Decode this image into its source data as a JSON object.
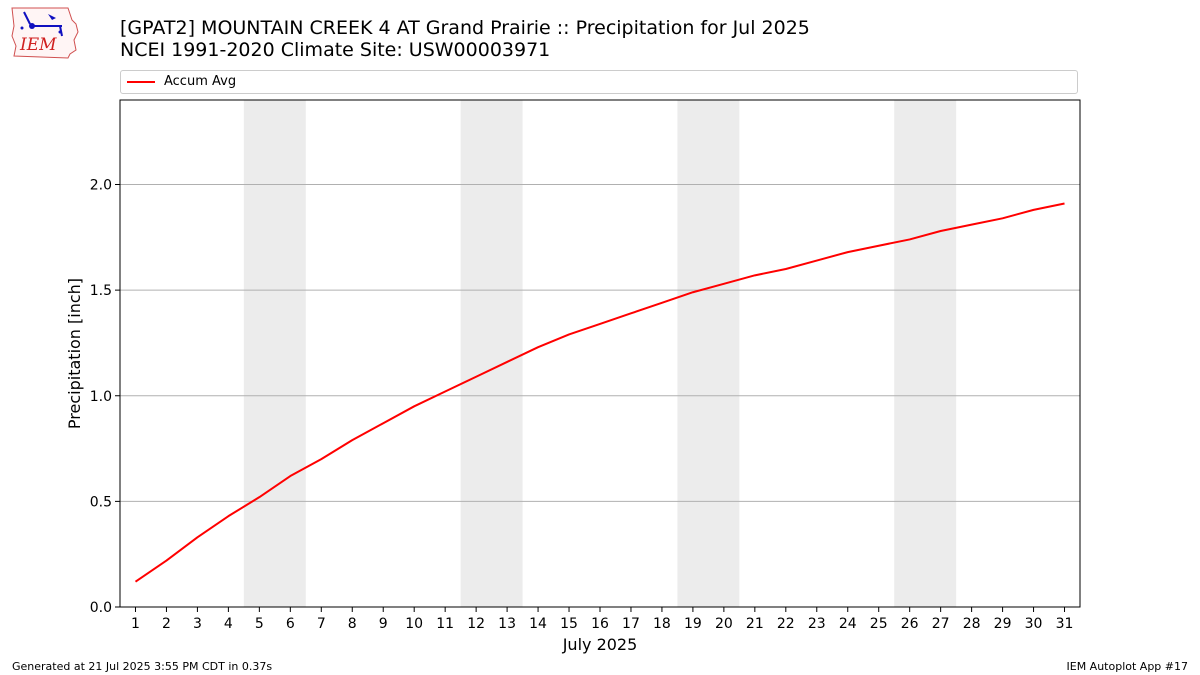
{
  "header": {
    "logo_text": "IEM",
    "title_line1": "[GPAT2] MOUNTAIN CREEK 4 AT Grand Prairie :: Precipitation for Jul 2025",
    "title_line2": "NCEI 1991-2020 Climate Site: USW00003971"
  },
  "footer": {
    "left": "Generated at 21 Jul 2025 3:55 PM CDT in 0.37s",
    "right": "IEM Autoplot App #17"
  },
  "colors": {
    "series": "#ff0000",
    "weekend_band": "#ececec",
    "grid": "#b0b0b0"
  },
  "chart_data": {
    "type": "line",
    "xlabel": "July 2025",
    "ylabel": "Precipitation [inch]",
    "ylim": [
      0,
      2.4
    ],
    "yticks": [
      "0.0",
      "0.5",
      "1.0",
      "1.5",
      "2.0"
    ],
    "grid": "horizontal",
    "legend_position": "top",
    "x": [
      1,
      2,
      3,
      4,
      5,
      6,
      7,
      8,
      9,
      10,
      11,
      12,
      13,
      14,
      15,
      16,
      17,
      18,
      19,
      20,
      21,
      22,
      23,
      24,
      25,
      26,
      27,
      28,
      29,
      30,
      31
    ],
    "shaded_days": [
      [
        5,
        6
      ],
      [
        12,
        13
      ],
      [
        19,
        20
      ],
      [
        26,
        27
      ]
    ],
    "series": [
      {
        "name": "Accum Avg",
        "values": [
          0.12,
          0.22,
          0.33,
          0.43,
          0.52,
          0.62,
          0.7,
          0.79,
          0.87,
          0.95,
          1.02,
          1.09,
          1.16,
          1.23,
          1.29,
          1.34,
          1.39,
          1.44,
          1.49,
          1.53,
          1.57,
          1.6,
          1.64,
          1.68,
          1.71,
          1.74,
          1.78,
          1.81,
          1.84,
          1.88,
          1.91
        ]
      }
    ]
  }
}
